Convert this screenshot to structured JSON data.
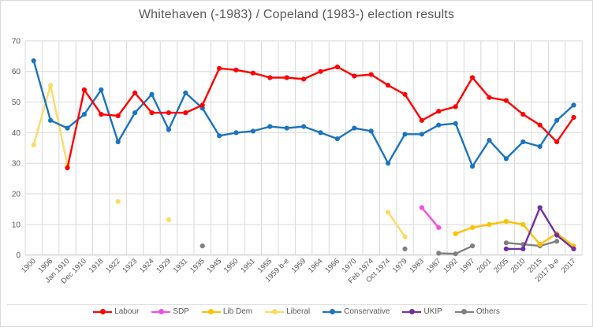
{
  "title": "Whitehaven (-1983) / Copeland (1983-) election results",
  "style": {
    "background": "#FFFFFF",
    "border": "#D9D9D9",
    "grid": "#D9D9D9",
    "axis": "#BFBFBF",
    "separator": "#E2E2E2",
    "text": "#595959",
    "title_color": "#595959"
  },
  "chart_data": {
    "type": "line",
    "title": "Whitehaven (-1983) / Copeland (1983-) election results",
    "xlabel": "",
    "ylabel": "",
    "ylim": [
      0,
      70
    ],
    "y_tick_step": 10,
    "y_ticks": [
      "0",
      "10",
      "20",
      "30",
      "40",
      "50",
      "60",
      "70"
    ],
    "grid": true,
    "legend_position": "bottom",
    "marker": "circle",
    "categories": [
      "1900",
      "1906",
      "Jan 1910",
      "Dec 1910",
      "1918",
      "1922",
      "1923",
      "1924",
      "1929",
      "1931",
      "1935",
      "1945",
      "1950",
      "1951",
      "1955",
      "1959 b-e",
      "1959",
      "1964",
      "1966",
      "1970",
      "Feb 1974",
      "Oct 1974",
      "1979",
      "1983",
      "1987",
      "1992",
      "1997",
      "2001",
      "2005",
      "2010",
      "2015",
      "2017 b-e",
      "2017"
    ],
    "series": [
      {
        "name": "Labour",
        "color": "#FF0000",
        "values": [
          null,
          null,
          28.5,
          54,
          46,
          45.5,
          53,
          46.5,
          46.5,
          46.5,
          49,
          61,
          60.5,
          59.5,
          58,
          58,
          57.5,
          60,
          61.5,
          58.5,
          59,
          55.5,
          52.5,
          44,
          47,
          48.5,
          58,
          51.5,
          50.5,
          46,
          42.5,
          37,
          45
        ]
      },
      {
        "name": "SDP",
        "color": "#F24FE3",
        "values": [
          null,
          null,
          null,
          null,
          null,
          null,
          null,
          null,
          null,
          null,
          null,
          null,
          null,
          null,
          null,
          null,
          null,
          null,
          null,
          null,
          null,
          null,
          null,
          15.5,
          9,
          null,
          null,
          null,
          null,
          null,
          null,
          null,
          null
        ]
      },
      {
        "name": "Lib Dem",
        "color": "#FFC000",
        "values": [
          null,
          null,
          null,
          null,
          null,
          null,
          null,
          null,
          null,
          null,
          null,
          null,
          null,
          null,
          null,
          null,
          null,
          null,
          null,
          null,
          null,
          null,
          null,
          null,
          null,
          7,
          9,
          10,
          11,
          10,
          3.5,
          7,
          3
        ]
      },
      {
        "name": "Liberal",
        "color": "#FFD966",
        "values": [
          36,
          55.5,
          29.5,
          null,
          null,
          17.5,
          null,
          null,
          11.5,
          null,
          null,
          null,
          null,
          null,
          null,
          null,
          null,
          null,
          null,
          null,
          null,
          14,
          6,
          null,
          null,
          null,
          null,
          null,
          null,
          null,
          null,
          null,
          null
        ]
      },
      {
        "name": "Conservative",
        "color": "#1B74C0",
        "values": [
          63.5,
          44,
          41.5,
          46,
          54,
          37,
          46.5,
          52.5,
          41,
          53,
          48,
          39,
          40,
          40.5,
          42,
          41.5,
          42,
          40,
          38,
          41.5,
          40.5,
          30,
          39.5,
          39.5,
          42.5,
          43,
          29,
          37.5,
          31.5,
          37,
          35.5,
          44,
          49
        ]
      },
      {
        "name": "UKIP",
        "color": "#7030A0",
        "values": [
          null,
          null,
          null,
          null,
          null,
          null,
          null,
          null,
          null,
          null,
          null,
          null,
          null,
          null,
          null,
          null,
          null,
          null,
          null,
          null,
          null,
          null,
          null,
          null,
          null,
          null,
          null,
          null,
          2,
          2,
          15.5,
          6.5,
          2
        ]
      },
      {
        "name": "Others",
        "color": "#808080",
        "values": [
          null,
          null,
          null,
          null,
          null,
          null,
          null,
          null,
          null,
          null,
          3,
          null,
          null,
          null,
          null,
          null,
          null,
          null,
          null,
          null,
          null,
          null,
          2,
          null,
          0.6,
          0.4,
          3,
          null,
          4,
          3.5,
          3,
          4.5,
          null
        ]
      }
    ]
  }
}
